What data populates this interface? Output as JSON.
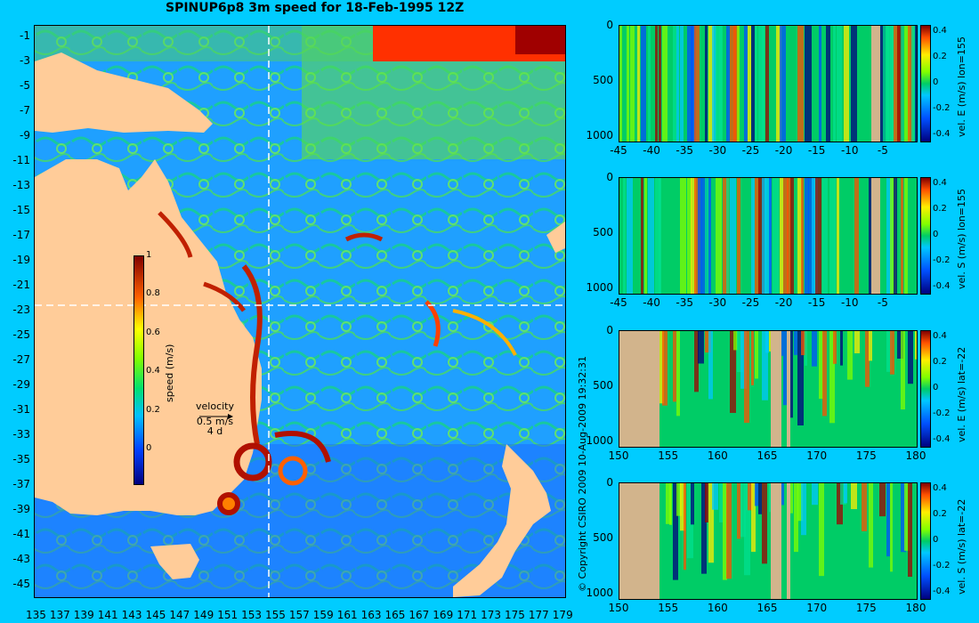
{
  "title": "SPINUP6p8 3m speed for 18-Feb-1995 12Z",
  "copyright": "© Copyright CSIRO 2009   10-Aug-2009 19:32:31",
  "colors": {
    "background": "#00ccff",
    "land": "#ffcc99",
    "panel_land": "#d2b48c"
  },
  "map": {
    "lon_labels": [
      "135",
      "137",
      "139",
      "141",
      "143",
      "145",
      "147",
      "149",
      "151",
      "153",
      "155",
      "157",
      "159",
      "161",
      "163",
      "165",
      "167",
      "169",
      "171",
      "173",
      "175",
      "177",
      "179"
    ],
    "lat_labels": [
      "-1",
      "-3",
      "-5",
      "-7",
      "-9",
      "-11",
      "-13",
      "-15",
      "-17",
      "-19",
      "-21",
      "-23",
      "-25",
      "-27",
      "-29",
      "-31",
      "-33",
      "-35",
      "-37",
      "-39",
      "-41",
      "-43",
      "-45"
    ],
    "colorbar": {
      "label": "speed (m/s)",
      "ticks": [
        "0",
        "0.2",
        "0.4",
        "0.6",
        "0.8",
        "1"
      ]
    },
    "velocity_key": {
      "title": "velocity",
      "speed": "0.5 m/s",
      "duration": "4 d"
    },
    "section_lines": {
      "lon": "155",
      "lat": "-22"
    }
  },
  "chart_data": [
    {
      "type": "heatmap",
      "title": "",
      "xlabel": "",
      "ylabel": "",
      "xlim": [
        -45,
        0
      ],
      "ylim": [
        1050,
        0
      ],
      "x_ticks": [
        "-45",
        "-40",
        "-35",
        "-30",
        "-25",
        "-20",
        "-15",
        "-10",
        "-5"
      ],
      "y_ticks": [
        "0",
        "500",
        "1000"
      ],
      "colorbar": {
        "label": "vel. E (m/s) lon=155",
        "ticks": [
          "0.4",
          "0.2",
          "0",
          "-0.2",
          "-0.4"
        ],
        "range": [
          -0.45,
          0.45
        ]
      }
    },
    {
      "type": "heatmap",
      "title": "",
      "xlabel": "",
      "ylabel": "",
      "xlim": [
        -45,
        0
      ],
      "ylim": [
        1050,
        0
      ],
      "x_ticks": [
        "-45",
        "-40",
        "-35",
        "-30",
        "-25",
        "-20",
        "-15",
        "-10",
        "-5"
      ],
      "y_ticks": [
        "0",
        "500",
        "1000"
      ],
      "colorbar": {
        "label": "vel. S (m/s) lon=155",
        "ticks": [
          "0.4",
          "0.2",
          "0",
          "-0.2",
          "-0.4"
        ],
        "range": [
          -0.45,
          0.45
        ]
      }
    },
    {
      "type": "heatmap",
      "title": "",
      "xlabel": "",
      "ylabel": "",
      "xlim": [
        150,
        180
      ],
      "ylim": [
        1050,
        0
      ],
      "x_ticks": [
        "150",
        "155",
        "160",
        "165",
        "170",
        "175",
        "180"
      ],
      "y_ticks": [
        "0",
        "500",
        "1000"
      ],
      "colorbar": {
        "label": "vel. E (m/s) lat=-22",
        "ticks": [
          "0.4",
          "0.2",
          "0",
          "-0.2",
          "-0.4"
        ],
        "range": [
          -0.45,
          0.45
        ]
      }
    },
    {
      "type": "heatmap",
      "title": "",
      "xlabel": "",
      "ylabel": "",
      "xlim": [
        150,
        180
      ],
      "ylim": [
        1050,
        0
      ],
      "x_ticks": [
        "150",
        "155",
        "160",
        "165",
        "170",
        "175",
        "180"
      ],
      "y_ticks": [
        "0",
        "500",
        "1000"
      ],
      "colorbar": {
        "label": "vel. S (m/s) lat=-22",
        "ticks": [
          "0.4",
          "0.2",
          "0",
          "-0.2",
          "-0.4"
        ],
        "range": [
          -0.45,
          0.45
        ]
      }
    }
  ]
}
